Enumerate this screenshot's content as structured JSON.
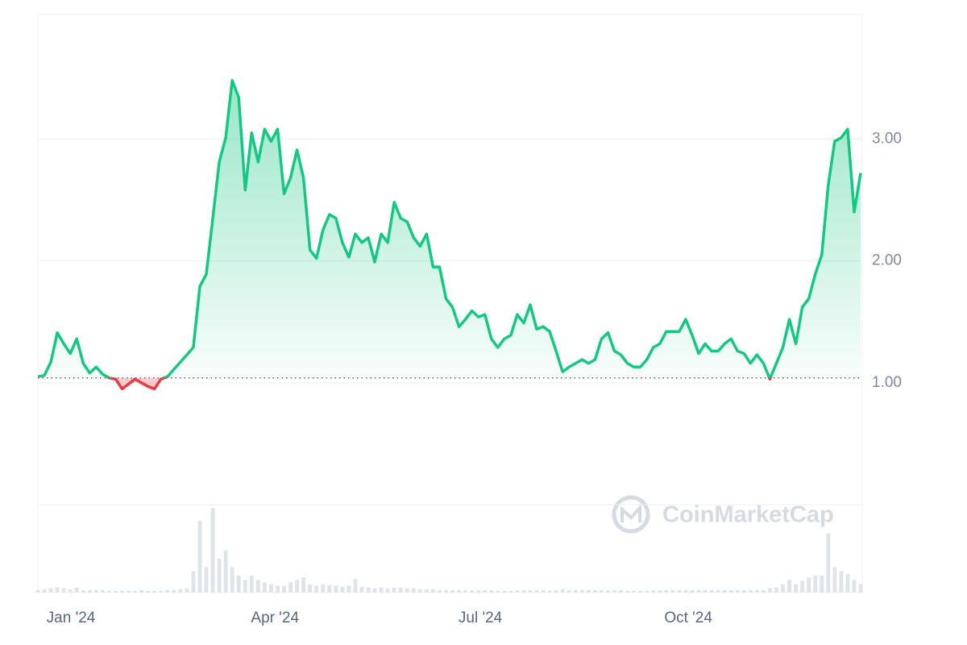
{
  "chart_data": {
    "type": "line",
    "series": [
      {
        "color": "#16c784",
        "below_color": "#ea3943",
        "values": [
          1.05,
          1.06,
          1.17,
          1.41,
          1.32,
          1.24,
          1.36,
          1.16,
          1.08,
          1.13,
          1.07,
          1.04,
          1.03,
          0.95,
          0.99,
          1.03,
          1.0,
          0.97,
          0.95,
          1.03,
          1.05,
          1.11,
          1.17,
          1.23,
          1.29,
          1.79,
          1.89,
          2.35,
          2.81,
          3.01,
          3.48,
          3.34,
          2.58,
          3.05,
          2.81,
          3.08,
          2.98,
          3.08,
          2.55,
          2.68,
          2.91,
          2.68,
          2.09,
          2.02,
          2.25,
          2.38,
          2.35,
          2.15,
          2.03,
          2.22,
          2.15,
          2.19,
          1.99,
          2.22,
          2.15,
          2.48,
          2.35,
          2.32,
          2.19,
          2.12,
          2.22,
          1.95,
          1.95,
          1.69,
          1.62,
          1.46,
          1.52,
          1.59,
          1.54,
          1.56,
          1.36,
          1.29,
          1.36,
          1.39,
          1.56,
          1.49,
          1.64,
          1.44,
          1.46,
          1.42,
          1.26,
          1.09,
          1.13,
          1.16,
          1.19,
          1.16,
          1.19,
          1.36,
          1.41,
          1.26,
          1.23,
          1.16,
          1.13,
          1.13,
          1.19,
          1.29,
          1.32,
          1.42,
          1.42,
          1.42,
          1.52,
          1.39,
          1.24,
          1.32,
          1.26,
          1.26,
          1.32,
          1.36,
          1.26,
          1.24,
          1.16,
          1.23,
          1.16,
          1.03,
          1.16,
          1.29,
          1.52,
          1.32,
          1.62,
          1.69,
          1.89,
          2.05,
          2.62,
          2.98,
          3.01,
          3.08,
          2.4,
          2.72
        ],
        "volume": [
          3,
          4,
          5,
          6,
          5,
          4,
          6,
          3,
          3,
          3,
          3,
          2,
          2,
          2,
          2,
          2,
          3,
          2,
          2,
          2,
          3,
          3,
          4,
          5,
          25,
          85,
          30,
          100,
          40,
          50,
          30,
          20,
          15,
          20,
          15,
          12,
          10,
          8,
          8,
          12,
          15,
          18,
          10,
          8,
          10,
          9,
          8,
          7,
          8,
          16,
          7,
          6,
          5,
          6,
          5,
          6,
          6,
          5,
          5,
          4,
          4,
          4,
          3,
          3,
          3,
          3,
          3,
          3,
          3,
          3,
          3,
          2,
          2,
          2,
          3,
          3,
          3,
          3,
          3,
          2,
          3,
          4,
          3,
          3,
          3,
          3,
          3,
          3,
          3,
          3,
          3,
          2,
          2,
          2,
          2,
          3,
          3,
          3,
          3,
          3,
          3,
          3,
          3,
          3,
          3,
          3,
          3,
          3,
          3,
          3,
          3,
          3,
          3,
          5,
          6,
          10,
          15,
          10,
          14,
          18,
          20,
          20,
          70,
          30,
          25,
          22,
          15,
          10
        ]
      }
    ],
    "baseline": 1.04,
    "xlim": [
      0,
      127
    ],
    "xticks": [
      {
        "value": 5.1,
        "label": "Jan '24"
      },
      {
        "value": 36.6,
        "label": "Apr '24"
      },
      {
        "value": 68.3,
        "label": "Jul '24"
      },
      {
        "value": 100.4,
        "label": "Oct '24"
      }
    ],
    "ylim": [
      0,
      4.02
    ],
    "yticks": [
      {
        "value": 1,
        "label": "1.00"
      },
      {
        "value": 2,
        "label": "2.00"
      },
      {
        "value": 3,
        "label": "3.00"
      }
    ],
    "grid": true,
    "watermark": "CoinMarketCap"
  }
}
